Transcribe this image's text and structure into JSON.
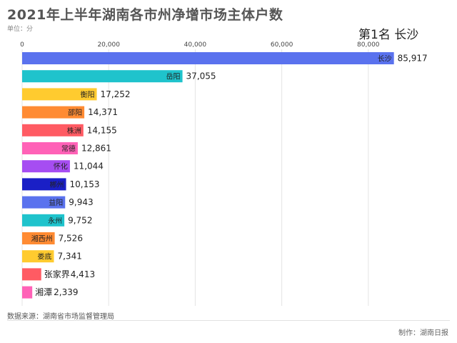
{
  "header": {
    "title": "2021年上半年湖南各市州净增市场主体户数",
    "unit": "单位：分",
    "rank_label": "第1名 长沙"
  },
  "footer": {
    "source": "数据来源：湖南省市场监督管理局",
    "credit": "制作：湖南日报"
  },
  "chart_data": {
    "type": "bar",
    "orientation": "horizontal",
    "title": "2021年上半年湖南各市州净增市场主体户数",
    "categories": [
      "长沙",
      "岳阳",
      "衡阳",
      "邵阳",
      "株洲",
      "常德",
      "怀化",
      "郴州",
      "益阳",
      "永州",
      "湘西州",
      "娄底",
      "张家界",
      "湘潭"
    ],
    "values": [
      85917,
      37055,
      17252,
      14371,
      14155,
      12861,
      11044,
      10153,
      9943,
      9752,
      7526,
      7341,
      4413,
      2339
    ],
    "value_labels": [
      "85,917",
      "37,055",
      "17,252",
      "14,371",
      "14,155",
      "12,861",
      "11,044",
      "10,153",
      "9,943",
      "9,752",
      "7,526",
      "7,341",
      "4,413",
      "2,339"
    ],
    "colors": [
      "#5a72ee",
      "#1fc3cc",
      "#ffcb2f",
      "#ff8b33",
      "#ff5b63",
      "#ff62b7",
      "#a64df2",
      "#1a1fc6",
      "#5a72ee",
      "#1fc3cc",
      "#ff8b33",
      "#ffcb2f",
      "#ff5b63",
      "#ff62b7"
    ],
    "xlim": [
      0,
      90000
    ],
    "xticks": [
      0,
      20000,
      40000,
      60000,
      80000
    ],
    "xtick_labels": [
      "0",
      "20,000",
      "40,000",
      "60,000",
      "80,000"
    ],
    "grid": true,
    "xaxis_position": "top"
  }
}
